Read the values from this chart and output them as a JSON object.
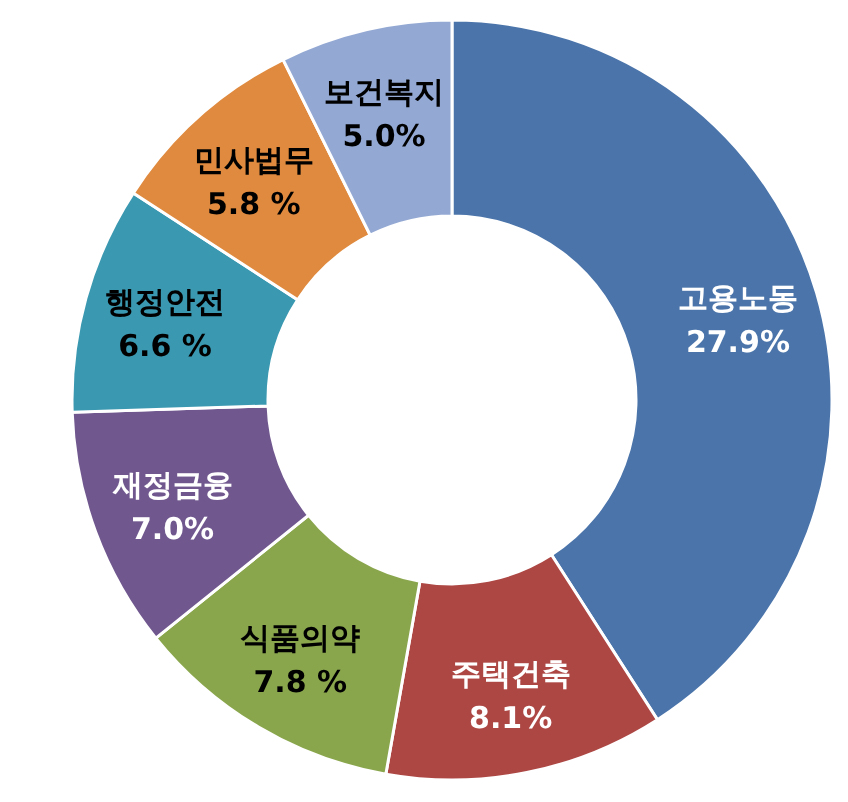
{
  "chart_data": {
    "type": "donut",
    "categories": [
      "고용노동",
      "주택건축",
      "식품의약",
      "재정금융",
      "행정안전",
      "민사법무",
      "보건복지"
    ],
    "values": [
      27.9,
      8.1,
      7.8,
      7.0,
      6.6,
      5.8,
      5.0
    ],
    "value_labels": [
      "27.9%",
      "8.1%",
      "7.8 %",
      "7.0%",
      "6.6 %",
      "5.8 %",
      "5.0%"
    ],
    "colors": [
      "#4a74aa",
      "#ad4744",
      "#8aa64c",
      "#70588f",
      "#3a98b0",
      "#df8a3e",
      "#93a8d3"
    ],
    "legend": false
  }
}
